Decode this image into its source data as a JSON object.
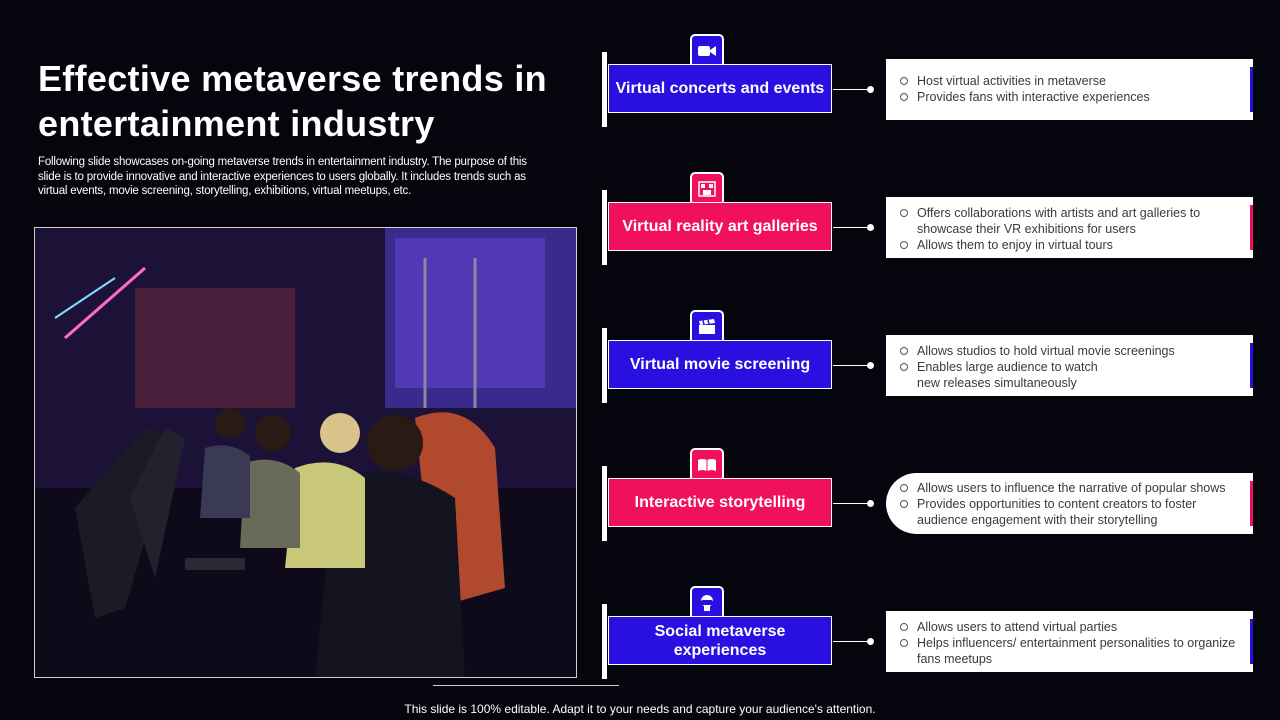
{
  "title": "Effective metaverse trends in entertainment industry",
  "description": "Following slide showcases on-going metaverse trends in entertainment industry. The purpose of this slide is to provide innovative and interactive experiences to users globally. It includes trends such as virtual events, movie screening, storytelling, exhibitions, virtual meetups, etc.",
  "footer": "This slide is 100% editable. Adapt it to your needs and capture your audience's attention.",
  "colors": {
    "blue": "#2a10e0",
    "pink": "#f0105e",
    "background": "#05050d"
  },
  "trends": [
    {
      "label": "Virtual concerts and events",
      "icon": "video-camera-icon",
      "color": "blue",
      "points": [
        "Host virtual activities in metaverse",
        "Provides fans with interactive experiences"
      ]
    },
    {
      "label": "Virtual reality art galleries",
      "icon": "gallery-icon",
      "color": "pink",
      "points": [
        "Offers collaborations with artists and art galleries to showcase their VR exhibitions for users",
        "Allows them to enjoy in virtual tours"
      ]
    },
    {
      "label": "Virtual movie screening",
      "icon": "clapperboard-icon",
      "color": "blue",
      "points": [
        "Allows studios to hold virtual movie screenings",
        "Enables large audience to watch new releases simultaneously"
      ]
    },
    {
      "label": "Interactive storytelling",
      "icon": "open-book-icon",
      "color": "pink",
      "points": [
        "Allows users to influence the narrative of popular shows",
        "Provides opportunities to content creators to foster audience engagement with their storytelling"
      ]
    },
    {
      "label": "Social metaverse experiences",
      "icon": "vr-headset-icon",
      "color": "blue",
      "points": [
        "Allows users to attend virtual parties",
        "Helps influencers/ entertainment personalities to organize fans meetups"
      ]
    }
  ]
}
